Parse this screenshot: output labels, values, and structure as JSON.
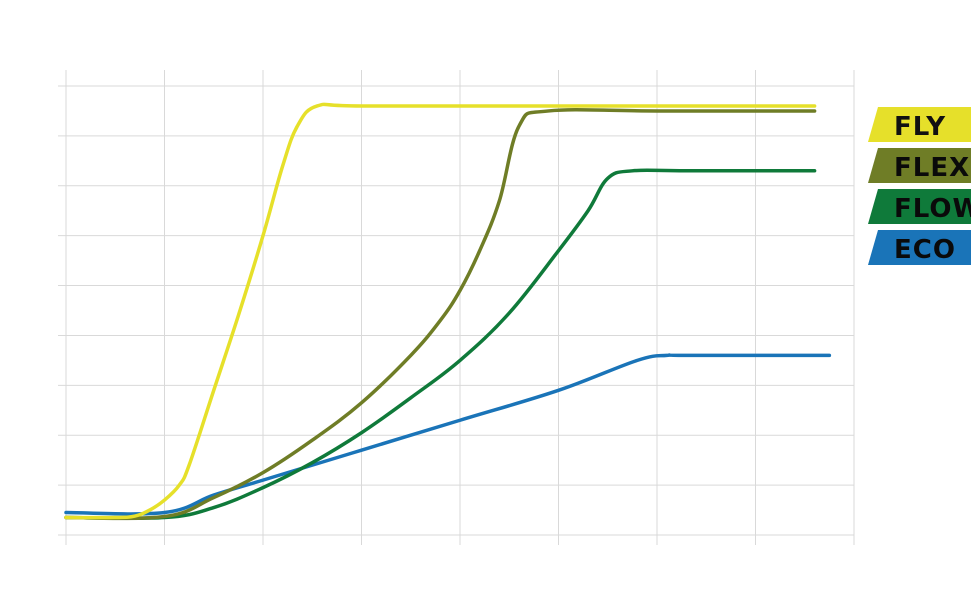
{
  "chart_data": {
    "type": "line",
    "title": "",
    "xlabel": "",
    "ylabel": "",
    "xlim": [
      0,
      8
    ],
    "ylim": [
      0,
      9
    ],
    "grid": true,
    "legend_position": "right",
    "series": [
      {
        "name": "FLY",
        "color": "#e6e02a",
        "x": [
          0.0,
          0.5,
          0.7,
          0.85,
          1.0,
          1.15,
          1.25,
          1.5,
          1.75,
          2.0,
          2.2,
          2.35,
          2.55,
          3.0,
          5.0,
          7.6
        ],
        "y": [
          0.35,
          0.35,
          0.38,
          0.5,
          0.7,
          1.0,
          1.4,
          2.9,
          4.4,
          6.0,
          7.4,
          8.2,
          8.6,
          8.6,
          8.6,
          8.6
        ]
      },
      {
        "name": "FLEX",
        "color": "#6f7d26",
        "x": [
          0.0,
          1.0,
          1.5,
          2.0,
          2.5,
          3.0,
          3.5,
          3.8,
          4.0,
          4.2,
          4.4,
          4.6,
          4.9,
          6.0,
          7.6
        ],
        "y": [
          0.35,
          0.37,
          0.75,
          1.25,
          1.9,
          2.65,
          3.6,
          4.3,
          4.9,
          5.7,
          6.7,
          8.2,
          8.5,
          8.5,
          8.5
        ]
      },
      {
        "name": "FLOW",
        "color": "#0f7a3a",
        "x": [
          0.0,
          1.0,
          1.5,
          2.0,
          2.5,
          3.0,
          3.5,
          4.0,
          4.5,
          5.0,
          5.3,
          5.5,
          5.75,
          6.3,
          7.6
        ],
        "y": [
          0.35,
          0.35,
          0.55,
          0.95,
          1.45,
          2.05,
          2.75,
          3.5,
          4.45,
          5.7,
          6.5,
          7.15,
          7.3,
          7.3,
          7.3
        ]
      },
      {
        "name": "ECO",
        "color": "#1a74b8",
        "x": [
          0.0,
          1.0,
          1.5,
          2.0,
          3.0,
          4.0,
          5.0,
          5.8,
          6.1,
          6.3,
          7.75
        ],
        "y": [
          0.45,
          0.45,
          0.8,
          1.1,
          1.7,
          2.3,
          2.9,
          3.5,
          3.6,
          3.6,
          3.6
        ]
      }
    ]
  }
}
